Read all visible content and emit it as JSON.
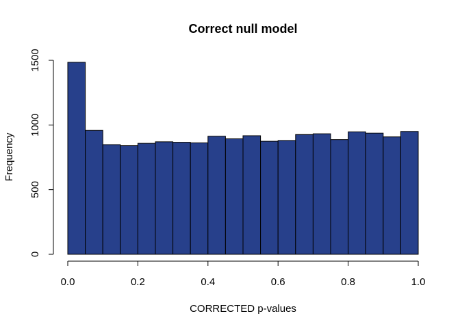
{
  "chart_data": {
    "type": "histogram",
    "title": "Correct null model",
    "xlabel": "CORRECTED p-values",
    "ylabel": "Frequency",
    "xlim": [
      0,
      1
    ],
    "ylim": [
      0,
      1500
    ],
    "bin_width": 0.05,
    "bins": [
      {
        "start": 0.0,
        "end": 0.05,
        "count": 1485
      },
      {
        "start": 0.05,
        "end": 0.1,
        "count": 958
      },
      {
        "start": 0.1,
        "end": 0.15,
        "count": 848
      },
      {
        "start": 0.15,
        "end": 0.2,
        "count": 840
      },
      {
        "start": 0.2,
        "end": 0.25,
        "count": 858
      },
      {
        "start": 0.25,
        "end": 0.3,
        "count": 870
      },
      {
        "start": 0.3,
        "end": 0.35,
        "count": 866
      },
      {
        "start": 0.35,
        "end": 0.4,
        "count": 862
      },
      {
        "start": 0.4,
        "end": 0.45,
        "count": 913
      },
      {
        "start": 0.45,
        "end": 0.5,
        "count": 893
      },
      {
        "start": 0.5,
        "end": 0.55,
        "count": 917
      },
      {
        "start": 0.55,
        "end": 0.6,
        "count": 874
      },
      {
        "start": 0.6,
        "end": 0.65,
        "count": 880
      },
      {
        "start": 0.65,
        "end": 0.7,
        "count": 926
      },
      {
        "start": 0.7,
        "end": 0.75,
        "count": 932
      },
      {
        "start": 0.75,
        "end": 0.8,
        "count": 887
      },
      {
        "start": 0.8,
        "end": 0.85,
        "count": 947
      },
      {
        "start": 0.85,
        "end": 0.9,
        "count": 937
      },
      {
        "start": 0.9,
        "end": 0.95,
        "count": 908
      },
      {
        "start": 0.95,
        "end": 1.0,
        "count": 950
      }
    ],
    "x_ticks": [
      "0.0",
      "0.2",
      "0.4",
      "0.6",
      "0.8",
      "1.0"
    ],
    "y_ticks": [
      "0",
      "500",
      "1000",
      "1500"
    ],
    "bar_color": "#27408B",
    "bar_edge_color": "#000000",
    "grid": false,
    "legend": false
  }
}
